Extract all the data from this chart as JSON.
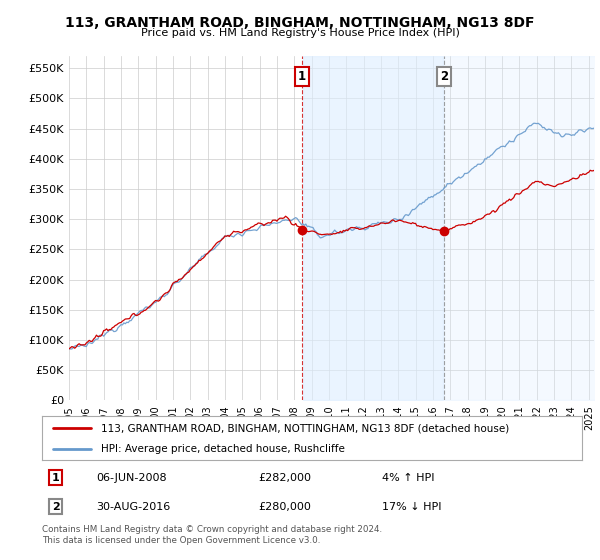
{
  "title": "113, GRANTHAM ROAD, BINGHAM, NOTTINGHAM, NG13 8DF",
  "subtitle": "Price paid vs. HM Land Registry's House Price Index (HPI)",
  "yticks": [
    0,
    50000,
    100000,
    150000,
    200000,
    250000,
    300000,
    350000,
    400000,
    450000,
    500000,
    550000
  ],
  "ylim": [
    0,
    570000
  ],
  "xlim_start": 1995.0,
  "xlim_end": 2025.3,
  "sale1_date": 2008.44,
  "sale1_price": 282000,
  "sale2_date": 2016.66,
  "sale2_price": 280000,
  "legend_house": "113, GRANTHAM ROAD, BINGHAM, NOTTINGHAM, NG13 8DF (detached house)",
  "legend_hpi": "HPI: Average price, detached house, Rushcliffe",
  "footer": "Contains HM Land Registry data © Crown copyright and database right 2024.\nThis data is licensed under the Open Government Licence v3.0.",
  "line_color_house": "#cc0000",
  "line_color_hpi": "#6699cc",
  "background_color": "#ffffff",
  "plot_bg_color": "#ffffff",
  "grid_color": "#cccccc",
  "annotation_box_color_1": "#cc0000",
  "annotation_box_color_2": "#888888",
  "shade_color": "#ddeeff",
  "title_fontsize": 10,
  "subtitle_fontsize": 8
}
